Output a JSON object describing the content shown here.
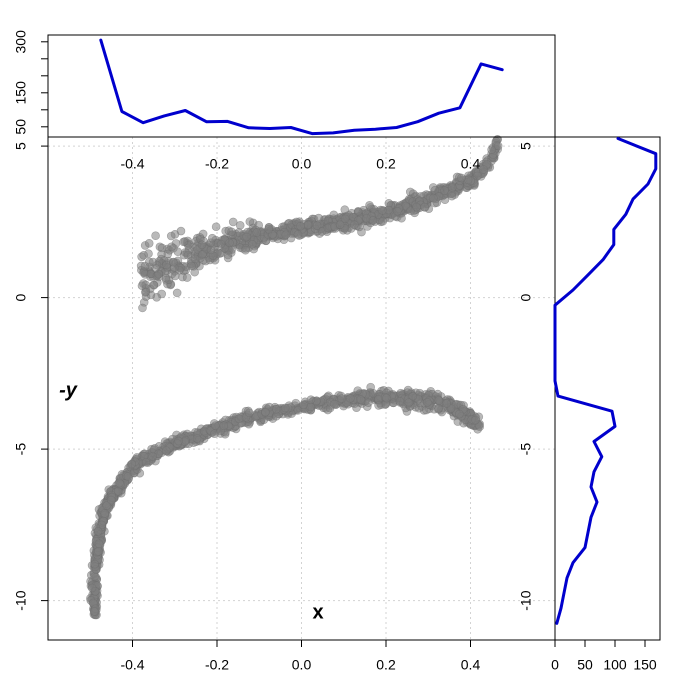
{
  "chart_data": [
    {
      "type": "scatter",
      "xlabel": "x",
      "ylabel": "-y",
      "xlim": [
        -0.6,
        0.6
      ],
      "ylim": [
        -11.3,
        5.3
      ],
      "xticks": [
        -0.4,
        -0.2,
        0.0,
        0.2,
        0.4
      ],
      "yticks": [
        -10,
        -5,
        0,
        5
      ],
      "grid": true,
      "point_color": "#808080",
      "upper_branch": {
        "x": [
          -0.38,
          -0.33,
          -0.3,
          -0.25,
          -0.2,
          -0.15,
          -0.1,
          -0.05,
          0.0,
          0.05,
          0.1,
          0.15,
          0.2,
          0.25,
          0.3,
          0.35,
          0.4,
          0.43,
          0.45,
          0.47
        ],
        "y": [
          0.7,
          0.9,
          1.2,
          1.5,
          1.7,
          1.9,
          2.1,
          2.2,
          2.3,
          2.4,
          2.5,
          2.6,
          2.8,
          3.0,
          3.2,
          3.5,
          3.9,
          4.2,
          4.6,
          5.2
        ]
      },
      "lower_branch": {
        "x": [
          -0.49,
          -0.49,
          -0.48,
          -0.47,
          -0.45,
          -0.42,
          -0.38,
          -0.33,
          -0.28,
          -0.22,
          -0.15,
          -0.08,
          0.0,
          0.08,
          0.15,
          0.22,
          0.28,
          0.33,
          0.38,
          0.42
        ],
        "y": [
          -10.4,
          -9.0,
          -8.0,
          -7.2,
          -6.6,
          -6.0,
          -5.4,
          -5.0,
          -4.7,
          -4.4,
          -4.1,
          -3.8,
          -3.6,
          -3.4,
          -3.3,
          -3.3,
          -3.4,
          -3.5,
          -3.8,
          -4.2
        ]
      }
    },
    {
      "type": "line",
      "name": "x-marginal",
      "color": "#0000CD",
      "xlim": [
        -0.6,
        0.6
      ],
      "ylim": [
        20,
        320
      ],
      "yticks": [
        50,
        100,
        150,
        200,
        250,
        300
      ],
      "ytick_labels": [
        "50",
        "",
        "150",
        "",
        "",
        "300"
      ],
      "x": [
        -0.475,
        -0.425,
        -0.375,
        -0.325,
        -0.275,
        -0.225,
        -0.175,
        -0.125,
        -0.075,
        -0.025,
        0.025,
        0.075,
        0.125,
        0.175,
        0.225,
        0.275,
        0.325,
        0.375,
        0.425,
        0.475
      ],
      "y": [
        305,
        95,
        62,
        82,
        98,
        65,
        66,
        47,
        45,
        48,
        30,
        32,
        40,
        43,
        48,
        65,
        90,
        106,
        235,
        218
      ]
    },
    {
      "type": "line",
      "name": "y-marginal",
      "color": "#0000CD",
      "xlim": [
        0,
        175
      ],
      "ylim": [
        -11.3,
        5.3
      ],
      "xticks": [
        0,
        50,
        100,
        150
      ],
      "y": [
        5.25,
        4.75,
        4.25,
        3.75,
        3.25,
        2.75,
        2.25,
        1.75,
        1.25,
        0.75,
        0.25,
        -0.25,
        -0.75,
        -1.25,
        -1.75,
        -2.25,
        -2.75,
        -3.25,
        -3.75,
        -4.25,
        -4.75,
        -5.25,
        -5.75,
        -6.25,
        -6.75,
        -7.25,
        -7.75,
        -8.25,
        -8.75,
        -9.25,
        -9.75,
        -10.25,
        -10.75
      ],
      "x": [
        105,
        168,
        168,
        155,
        130,
        118,
        98,
        98,
        80,
        55,
        30,
        0,
        0,
        0,
        0,
        0,
        0,
        5,
        95,
        100,
        65,
        78,
        65,
        60,
        70,
        60,
        55,
        50,
        30,
        20,
        15,
        10,
        3
      ]
    }
  ]
}
